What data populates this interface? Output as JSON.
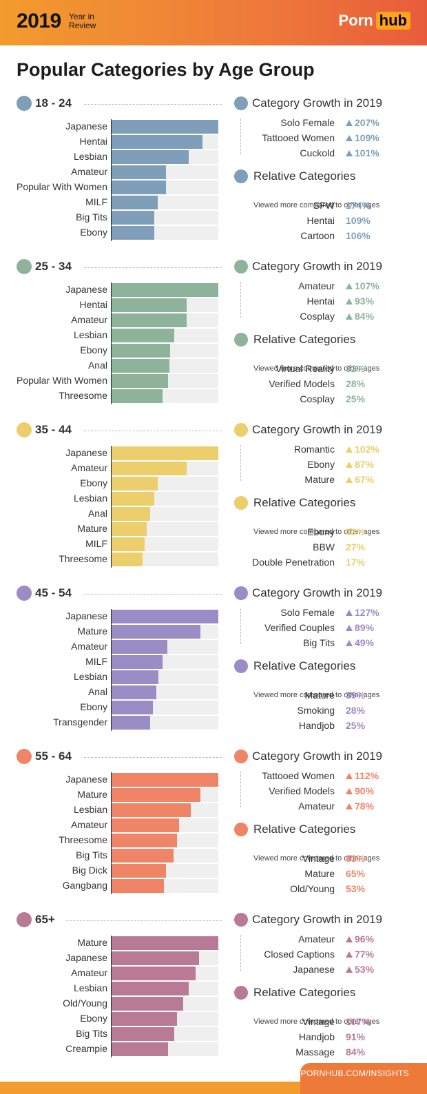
{
  "header": {
    "year": "2019",
    "subtitle": "Year in Review",
    "logo_left": "Porn",
    "logo_right": "hub"
  },
  "page_title": "Popular Categories by Age Group",
  "labels": {
    "growth_title": "Category Growth in 2019",
    "relative_title": "Relative Categories",
    "relative_sub": "Viewed more compared to other ages"
  },
  "footer": {
    "url": "PORNHUB.COM/INSIGHTS"
  },
  "colors": {
    "18-24": "#7f9eb9",
    "25-34": "#8db49b",
    "35-44": "#ecce6c",
    "45-54": "#9a8cc4",
    "55-64": "#ef8467",
    "65+": "#b97a95"
  },
  "chart_data": [
    {
      "type": "bar",
      "group": "18 - 24",
      "color": "#7f9eb9",
      "categories": [
        "Japanese",
        "Hentai",
        "Lesbian",
        "Amateur",
        "Popular With Women",
        "MILF",
        "Big Tits",
        "Ebony"
      ],
      "values": [
        100,
        85,
        72,
        51,
        51,
        43,
        40,
        40
      ],
      "growth": [
        {
          "name": "Solo Female",
          "value": "207%"
        },
        {
          "name": "Tattooed Women",
          "value": "109%"
        },
        {
          "name": "Cuckold",
          "value": "101%"
        }
      ],
      "relative": [
        {
          "name": "SFW",
          "value": "174%"
        },
        {
          "name": "Hentai",
          "value": "109%"
        },
        {
          "name": "Cartoon",
          "value": "106%"
        }
      ]
    },
    {
      "type": "bar",
      "group": "25 - 34",
      "color": "#8db49b",
      "categories": [
        "Japanese",
        "Hentai",
        "Amateur",
        "Lesbian",
        "Ebony",
        "Anal",
        "Popular With Women",
        "Threesome"
      ],
      "values": [
        100,
        70,
        70,
        59,
        55,
        54,
        53,
        48
      ],
      "growth": [
        {
          "name": "Amateur",
          "value": "107%"
        },
        {
          "name": "Hentai",
          "value": "93%"
        },
        {
          "name": "Cosplay",
          "value": "84%"
        }
      ],
      "relative": [
        {
          "name": "Virtual Reality",
          "value": "32%"
        },
        {
          "name": "Verified Models",
          "value": "28%"
        },
        {
          "name": "Cosplay",
          "value": "25%"
        }
      ]
    },
    {
      "type": "bar",
      "group": "35 - 44",
      "color": "#ecce6c",
      "categories": [
        "Japanese",
        "Amateur",
        "Ebony",
        "Lesbian",
        "Anal",
        "Mature",
        "MILF",
        "Threesome"
      ],
      "values": [
        100,
        70,
        43,
        40,
        36,
        33,
        31,
        29
      ],
      "growth": [
        {
          "name": "Romantic",
          "value": "102%"
        },
        {
          "name": "Ebony",
          "value": "87%"
        },
        {
          "name": "Mature",
          "value": "67%"
        }
      ],
      "relative": [
        {
          "name": "Ebony",
          "value": "33%"
        },
        {
          "name": "BBW",
          "value": "27%"
        },
        {
          "name": "Double Penetration",
          "value": "17%"
        }
      ]
    },
    {
      "type": "bar",
      "group": "45 - 54",
      "color": "#9a8cc4",
      "categories": [
        "Japanese",
        "Mature",
        "Amateur",
        "MILF",
        "Lesbian",
        "Anal",
        "Ebony",
        "Transgender"
      ],
      "values": [
        100,
        83,
        52,
        48,
        44,
        42,
        39,
        36
      ],
      "growth": [
        {
          "name": "Solo Female",
          "value": "127%"
        },
        {
          "name": "Verified Couples",
          "value": "89%"
        },
        {
          "name": "Big Tits",
          "value": "49%"
        }
      ],
      "relative": [
        {
          "name": "Mature",
          "value": "39%"
        },
        {
          "name": "Smoking",
          "value": "28%"
        },
        {
          "name": "Handjob",
          "value": "25%"
        }
      ]
    },
    {
      "type": "bar",
      "group": "55 - 64",
      "color": "#ef8467",
      "categories": [
        "Japanese",
        "Mature",
        "Lesbian",
        "Amateur",
        "Threesome",
        "Big Tits",
        "Big Dick",
        "Gangbang"
      ],
      "values": [
        100,
        83,
        74,
        63,
        61,
        58,
        51,
        49
      ],
      "growth": [
        {
          "name": "Tattooed Women",
          "value": "112%"
        },
        {
          "name": "Verified Models",
          "value": "90%"
        },
        {
          "name": "Amateur",
          "value": "78%"
        }
      ],
      "relative": [
        {
          "name": "Vintage",
          "value": "83%"
        },
        {
          "name": "Mature",
          "value": "65%"
        },
        {
          "name": "Old/Young",
          "value": "53%"
        }
      ]
    },
    {
      "type": "bar",
      "group": "65+",
      "color": "#b97a95",
      "categories": [
        "Mature",
        "Japanese",
        "Amateur",
        "Lesbian",
        "Old/Young",
        "Ebony",
        "Big Tits",
        "Creampie"
      ],
      "values": [
        100,
        82,
        79,
        72,
        67,
        61,
        59,
        53
      ],
      "growth": [
        {
          "name": "Amateur",
          "value": "96%"
        },
        {
          "name": "Closed Captions",
          "value": "77%"
        },
        {
          "name": "Japanese",
          "value": "53%"
        }
      ],
      "relative": [
        {
          "name": "Vintage",
          "value": "107%"
        },
        {
          "name": "Handjob",
          "value": "91%"
        },
        {
          "name": "Massage",
          "value": "84%"
        }
      ]
    }
  ]
}
